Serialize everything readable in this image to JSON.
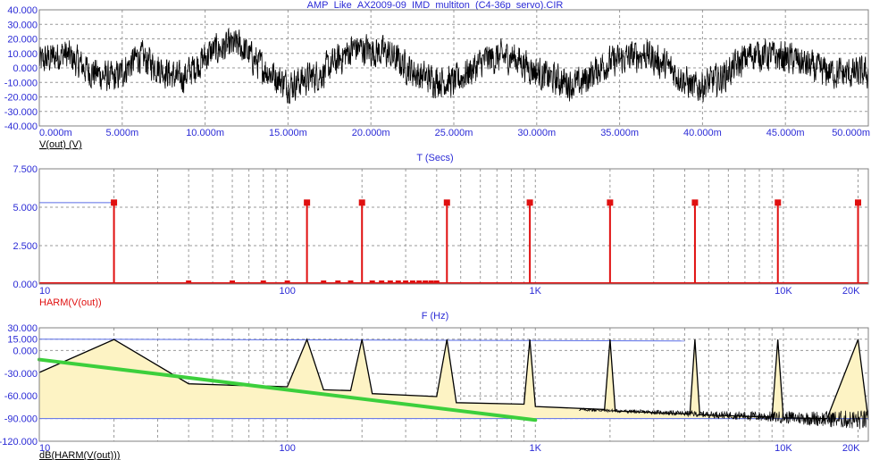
{
  "title": "AMP_Like_AX2009-09_IMD_multiton_(C4-36p_servo).CIR",
  "colors": {
    "axis_text": "#2b2bd6",
    "time_trace": "#000000",
    "harm": "#e01010",
    "fill": "#fdf3c4",
    "trend": "#3ccf3c",
    "ref_line": "#5a6ee8"
  },
  "chart_data": [
    {
      "id": "time",
      "type": "line",
      "xlabel": "T (Secs)",
      "ylabel": "V(out) (V)",
      "xlim": [
        0,
        0.05
      ],
      "ylim": [
        -40,
        40
      ],
      "xticks": [
        {
          "v": 0,
          "label": "0.000m"
        },
        {
          "v": 0.005,
          "label": "5.000m"
        },
        {
          "v": 0.01,
          "label": "10.000m"
        },
        {
          "v": 0.015,
          "label": "15.000m"
        },
        {
          "v": 0.02,
          "label": "20.000m"
        },
        {
          "v": 0.025,
          "label": "25.000m"
        },
        {
          "v": 0.03,
          "label": "30.000m"
        },
        {
          "v": 0.035,
          "label": "35.000m"
        },
        {
          "v": 0.04,
          "label": "40.000m"
        },
        {
          "v": 0.045,
          "label": "45.000m"
        },
        {
          "v": 0.05,
          "label": "50.000m"
        }
      ],
      "yticks": [
        {
          "v": 40,
          "label": "40.000"
        },
        {
          "v": 30,
          "label": "30.000"
        },
        {
          "v": 20,
          "label": "20.000"
        },
        {
          "v": 10,
          "label": "10.000"
        },
        {
          "v": 0,
          "label": "0.000"
        },
        {
          "v": -10,
          "label": "-10.000"
        },
        {
          "v": -20,
          "label": "-20.000"
        },
        {
          "v": -30,
          "label": "-30.000"
        },
        {
          "v": -40,
          "label": "-40.000"
        }
      ],
      "envelope": [
        [
          0,
          4
        ],
        [
          0.0015,
          10
        ],
        [
          0.003,
          -2
        ],
        [
          0.0045,
          -8
        ],
        [
          0.006,
          8
        ],
        [
          0.0085,
          -8
        ],
        [
          0.0105,
          12
        ],
        [
          0.012,
          16
        ],
        [
          0.0135,
          0
        ],
        [
          0.015,
          -12
        ],
        [
          0.017,
          -4
        ],
        [
          0.019,
          14
        ],
        [
          0.021,
          10
        ],
        [
          0.023,
          -6
        ],
        [
          0.025,
          -10
        ],
        [
          0.027,
          6
        ],
        [
          0.0285,
          8
        ],
        [
          0.0305,
          -6
        ],
        [
          0.0325,
          -12
        ],
        [
          0.034,
          2
        ],
        [
          0.0365,
          10
        ],
        [
          0.038,
          0
        ],
        [
          0.0395,
          -14
        ],
        [
          0.041,
          -8
        ],
        [
          0.043,
          10
        ],
        [
          0.0455,
          6
        ],
        [
          0.047,
          -2
        ],
        [
          0.0485,
          -4
        ],
        [
          0.05,
          -4
        ]
      ],
      "noise_amplitude": 15
    },
    {
      "id": "harm",
      "type": "bar",
      "xlabel": "F (Hz)",
      "ylabel": "HARM(V(out))",
      "xscale": "log",
      "xlim": [
        10,
        22000
      ],
      "ylim": [
        0,
        7.5
      ],
      "xticks": [
        {
          "v": 10,
          "label": "10"
        },
        {
          "v": 100,
          "label": "100"
        },
        {
          "v": 1000,
          "label": "1K"
        },
        {
          "v": 10000,
          "label": "10K"
        },
        {
          "v": 20000,
          "label": "20K"
        }
      ],
      "yticks": [
        {
          "v": 7.5,
          "label": "7.500"
        },
        {
          "v": 5,
          "label": "5.000"
        },
        {
          "v": 2.5,
          "label": "2.500"
        },
        {
          "v": 0,
          "label": "0.000"
        }
      ],
      "ref_value": 5.3,
      "tones": [
        {
          "f": 20,
          "v": 5.3
        },
        {
          "f": 120,
          "v": 5.3
        },
        {
          "f": 200,
          "v": 5.3
        },
        {
          "f": 440,
          "v": 5.3
        },
        {
          "f": 950,
          "v": 5.3
        },
        {
          "f": 2000,
          "v": 5.3
        },
        {
          "f": 4400,
          "v": 5.3
        },
        {
          "f": 9500,
          "v": 5.3
        },
        {
          "f": 20000,
          "v": 5.3
        }
      ],
      "small_bins": [
        40,
        60,
        80,
        100,
        140,
        160,
        180,
        220,
        240,
        260,
        280,
        300,
        320,
        340,
        360,
        380,
        400
      ]
    },
    {
      "id": "db",
      "type": "area",
      "xlabel": "",
      "ylabel": "dB(HARM(V(out)))",
      "xscale": "log",
      "xlim": [
        10,
        22000
      ],
      "ylim": [
        -120,
        30
      ],
      "xticks": [
        {
          "v": 10,
          "label": "10"
        },
        {
          "v": 100,
          "label": "100"
        },
        {
          "v": 1000,
          "label": "1K"
        },
        {
          "v": 10000,
          "label": "10K"
        },
        {
          "v": 20000,
          "label": "20K"
        }
      ],
      "yticks": [
        {
          "v": 30,
          "label": "30.000"
        },
        {
          "v": 15,
          "label": "15.000"
        },
        {
          "v": 0,
          "label": "0.000"
        },
        {
          "v": -30,
          "label": "-30.000"
        },
        {
          "v": -60,
          "label": "-60.000"
        },
        {
          "v": -90,
          "label": "-90.000"
        },
        {
          "v": -120,
          "label": "-120.000"
        }
      ],
      "ref_value": 15,
      "baseline": -90,
      "curve": [
        [
          10,
          -29
        ],
        [
          20,
          14.5
        ],
        [
          40,
          -44
        ],
        [
          60,
          -46
        ],
        [
          80,
          -47
        ],
        [
          100,
          -48
        ],
        [
          120,
          14.5
        ],
        [
          140,
          -52
        ],
        [
          180,
          -53
        ],
        [
          200,
          14.5
        ],
        [
          220,
          -57
        ],
        [
          400,
          -61
        ],
        [
          440,
          14.5
        ],
        [
          480,
          -69
        ],
        [
          900,
          -71
        ],
        [
          950,
          14.5
        ],
        [
          1000,
          -74
        ],
        [
          1900,
          -78
        ],
        [
          2000,
          14.5
        ],
        [
          2100,
          -80
        ],
        [
          4200,
          -84
        ],
        [
          4400,
          14.5
        ],
        [
          4600,
          -85
        ],
        [
          9000,
          -88
        ],
        [
          9500,
          14.5
        ],
        [
          10000,
          -89
        ],
        [
          15000,
          -90
        ],
        [
          20000,
          14.5
        ],
        [
          22000,
          -92
        ]
      ],
      "trend": [
        [
          10,
          -12
        ],
        [
          1000,
          -92
        ]
      ]
    }
  ]
}
